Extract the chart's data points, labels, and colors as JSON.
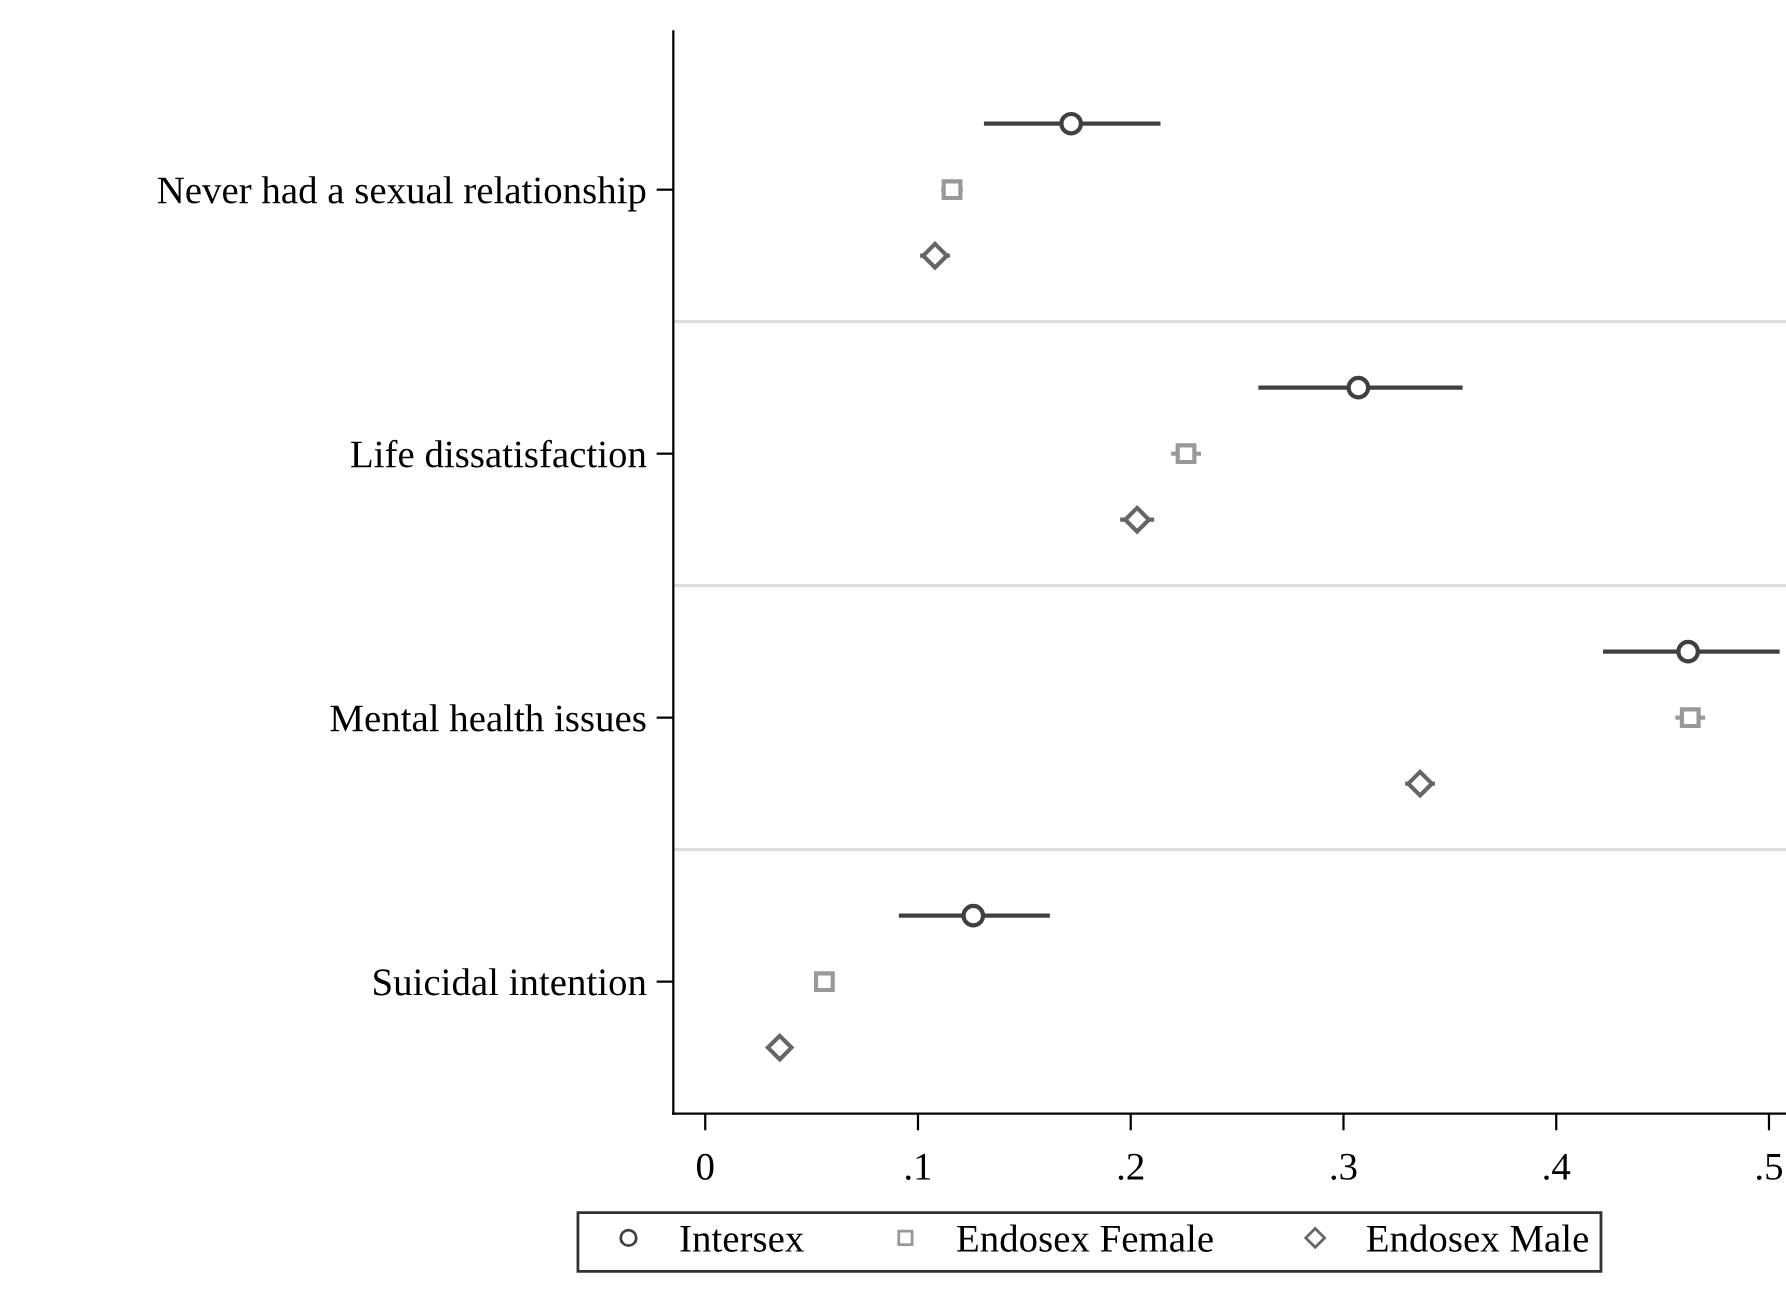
{
  "chart_data": {
    "type": "scatter",
    "orientation": "horizontal",
    "categories": [
      "Never had a sexual relationship",
      "Life dissatisfaction",
      "Mental health issues",
      "Suicidal intention"
    ],
    "series": [
      {
        "name": "Intersex",
        "color": "#404040",
        "marker": "circle",
        "values": [
          0.172,
          0.307,
          0.462,
          0.126
        ],
        "errors": [
          [
            0.131,
            0.214
          ],
          [
            0.26,
            0.356
          ],
          [
            0.422,
            0.505
          ],
          [
            0.091,
            0.162
          ]
        ]
      },
      {
        "name": "Endosex Female",
        "color": "#999999",
        "marker": "square",
        "values": [
          0.116,
          0.226,
          0.463,
          0.056
        ],
        "errors": [
          [
            0.111,
            0.121
          ],
          [
            0.219,
            0.233
          ],
          [
            0.456,
            0.47
          ],
          [
            0.053,
            0.059
          ]
        ]
      },
      {
        "name": "Endosex Male",
        "color": "#666666",
        "marker": "diamond",
        "values": [
          0.108,
          0.203,
          0.336,
          0.035
        ],
        "errors": [
          [
            0.101,
            0.115
          ],
          [
            0.195,
            0.211
          ],
          [
            0.329,
            0.343
          ],
          [
            0.032,
            0.038
          ]
        ]
      }
    ],
    "xlim": [
      -0.015,
      0.508
    ],
    "xticks": [
      0,
      {
        "value": 0.1,
        "label": ".1"
      },
      {
        "value": 0.2,
        "label": ".2"
      },
      {
        "value": 0.3,
        "label": ".3"
      },
      {
        "value": 0.4,
        "label": ".4"
      },
      {
        "value": 0.5,
        "label": ".5"
      }
    ],
    "grid": "y",
    "legend": "bottom"
  }
}
